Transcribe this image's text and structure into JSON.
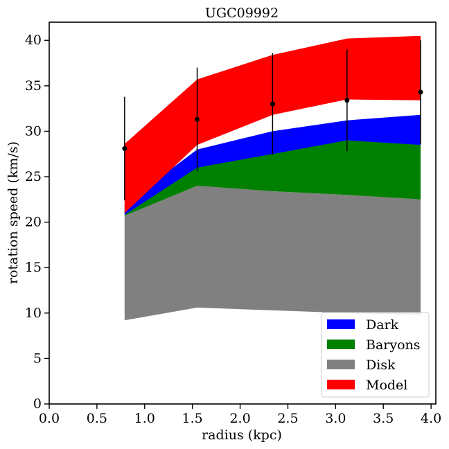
{
  "chart_data": {
    "type": "area",
    "title": "UGC09992",
    "xlabel": "radius (kpc)",
    "ylabel": "rotation speed (km/s)",
    "xlim": [
      0.0,
      4.05
    ],
    "ylim": [
      0,
      42
    ],
    "xticks": [
      "0.0",
      "0.5",
      "1.0",
      "1.5",
      "2.0",
      "2.5",
      "3.0",
      "3.5",
      "4.0"
    ],
    "yticks": [
      "0",
      "5",
      "10",
      "15",
      "20",
      "25",
      "30",
      "35",
      "40"
    ],
    "grid": false,
    "legend_position": "lower-right",
    "x": [
      0.79,
      1.55,
      2.34,
      3.12,
      3.89
    ],
    "bands": [
      {
        "name": "Model",
        "color": "#ff0000",
        "lower": [
          21.0,
          28.5,
          31.8,
          33.5,
          33.4
        ],
        "upper": [
          28.6,
          35.7,
          38.4,
          40.2,
          40.5
        ]
      },
      {
        "name": "Dark",
        "color": "#0000ff",
        "lower": [
          20.8,
          26.0,
          27.5,
          29.0,
          28.5
        ],
        "upper": [
          22.0,
          28.0,
          30.0,
          31.2,
          31.8
        ]
      },
      {
        "name": "Baryons",
        "color": "#008000",
        "lower": [
          20.7,
          24.0,
          23.4,
          23.0,
          22.5
        ],
        "upper": [
          20.8,
          26.2,
          27.6,
          29.0,
          28.6
        ]
      },
      {
        "name": "Disk",
        "color": "#808080",
        "lower": [
          9.2,
          10.6,
          10.3,
          10.0,
          9.8
        ],
        "upper": [
          20.7,
          24.0,
          23.4,
          23.0,
          22.5
        ]
      }
    ],
    "observations": {
      "color": "#000000",
      "x": [
        0.79,
        1.55,
        2.34,
        3.12,
        3.89
      ],
      "y": [
        28.1,
        31.3,
        33.0,
        33.4,
        34.3
      ],
      "yerr": [
        5.7,
        5.7,
        5.6,
        5.6,
        5.7
      ]
    },
    "legend": [
      {
        "label": "Dark",
        "color": "#0000ff"
      },
      {
        "label": "Baryons",
        "color": "#008000"
      },
      {
        "label": "Disk",
        "color": "#808080"
      },
      {
        "label": "Model",
        "color": "#ff0000"
      }
    ]
  }
}
